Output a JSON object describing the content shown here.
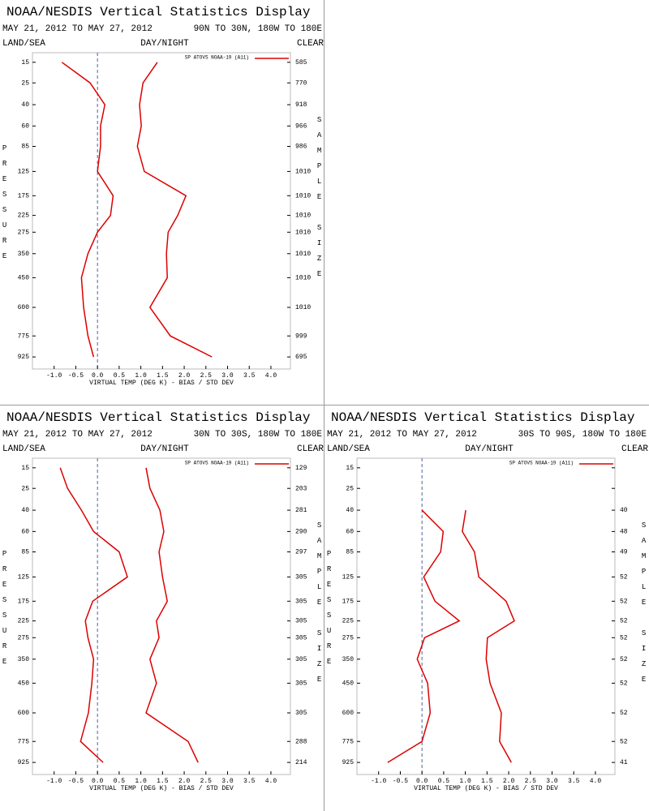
{
  "chart_data": [
    {
      "type": "line",
      "title": "NOAA/NESDIS Vertical Statistics Display",
      "subtitle": "MAY 21, 2012 TO MAY 27, 2012",
      "region": "90N TO 30N, 180W TO 180E",
      "left_header": "LAND/SEA",
      "center_header": "DAY/NIGHT",
      "right_header": "CLEAR",
      "ylabel": "PRESSURE",
      "y2label": "SAMPLE SIZE",
      "xlabel": "VIRTUAL TEMP (DEG K) - BIAS / STD DEV",
      "legend": {
        "label": "SP ATOVS NOAA-19 (A11)",
        "corner": "top-right"
      },
      "color": "#dd0000",
      "y": [
        15,
        25,
        40,
        60,
        85,
        125,
        175,
        225,
        275,
        350,
        450,
        600,
        775,
        925
      ],
      "yticks": [
        15,
        25,
        40,
        60,
        85,
        125,
        175,
        225,
        275,
        350,
        450,
        600,
        775,
        925
      ],
      "ylim": [
        11.5,
        1020
      ],
      "xlim": [
        -1.5,
        4.45
      ],
      "xticks": [
        {
          "value": -1.0,
          "label": "-1.0"
        },
        {
          "value": -0.5,
          "label": "-0.5"
        },
        {
          "value": 0.0,
          "label": "0.0"
        },
        {
          "value": 0.5,
          "label": "0.5"
        },
        {
          "value": 1.0,
          "label": "1.0"
        },
        {
          "value": 1.5,
          "label": "1.5"
        },
        {
          "value": 2.0,
          "label": "2.0"
        },
        {
          "value": 2.5,
          "label": "2.5"
        },
        {
          "value": 3.0,
          "label": "3.0"
        },
        {
          "value": 3.5,
          "label": "3.5"
        },
        {
          "value": 4.0,
          "label": "4.0"
        }
      ],
      "sample_size": [
        585,
        770,
        918,
        966,
        986,
        1010,
        1010,
        1010,
        1010,
        1010,
        1010,
        1010,
        999,
        695
      ],
      "series": [
        {
          "color": "#dd0000",
          "values": [
            -0.82,
            -0.17,
            0.17,
            0.07,
            0.07,
            0.0,
            0.36,
            0.3,
            0.0,
            -0.22,
            -0.37,
            -0.32,
            -0.22,
            -0.09
          ]
        },
        {
          "color": "#dd0000",
          "values": [
            1.38,
            1.05,
            0.97,
            1.01,
            0.92,
            1.08,
            2.04,
            1.85,
            1.63,
            1.59,
            1.61,
            1.21,
            1.68,
            2.64
          ]
        }
      ]
    },
    {
      "type": "line",
      "title": "NOAA/NESDIS Vertical Statistics Display",
      "subtitle": "MAY 21, 2012 TO MAY 27, 2012",
      "region": "30N TO 30S, 180W TO 180E",
      "left_header": "LAND/SEA",
      "center_header": "DAY/NIGHT",
      "right_header": "CLEAR",
      "ylabel": "PRESSURE",
      "y2label": "SAMPLE SIZE",
      "xlabel": "VIRTUAL TEMP (DEG K) - BIAS / STD DEV",
      "legend": {
        "label": "SP ATOVS NOAA-19 (A11)",
        "corner": "top-right"
      },
      "color": "#dd0000",
      "y": [
        15,
        25,
        40,
        60,
        85,
        125,
        175,
        225,
        275,
        350,
        450,
        600,
        775,
        925
      ],
      "yticks": [
        15,
        25,
        40,
        60,
        85,
        125,
        175,
        225,
        275,
        350,
        450,
        600,
        775,
        925
      ],
      "ylim": [
        11.5,
        1020
      ],
      "xlim": [
        -1.5,
        4.45
      ],
      "xticks": [
        {
          "value": -1.0,
          "label": "-1.0"
        },
        {
          "value": -0.5,
          "label": "-0.5"
        },
        {
          "value": 0.0,
          "label": "0.0"
        },
        {
          "value": 0.5,
          "label": "0.5"
        },
        {
          "value": 1.0,
          "label": "1.0"
        },
        {
          "value": 1.5,
          "label": "1.5"
        },
        {
          "value": 2.0,
          "label": "2.0"
        },
        {
          "value": 2.5,
          "label": "2.5"
        },
        {
          "value": 3.0,
          "label": "3.0"
        },
        {
          "value": 3.5,
          "label": "3.5"
        },
        {
          "value": 4.0,
          "label": "4.0"
        }
      ],
      "sample_size": [
        129,
        203,
        281,
        290,
        297,
        305,
        305,
        305,
        305,
        305,
        305,
        305,
        288,
        214
      ],
      "series": [
        {
          "color": "#dd0000",
          "values": [
            -0.86,
            -0.69,
            -0.37,
            -0.09,
            0.5,
            0.69,
            -0.11,
            -0.28,
            -0.22,
            -0.09,
            -0.13,
            -0.21,
            -0.39,
            0.13
          ]
        },
        {
          "color": "#dd0000",
          "values": [
            1.12,
            1.21,
            1.44,
            1.53,
            1.42,
            1.5,
            1.61,
            1.36,
            1.42,
            1.21,
            1.36,
            1.12,
            2.09,
            2.32
          ]
        }
      ]
    },
    {
      "type": "line",
      "title": "NOAA/NESDIS Vertical Statistics Display",
      "subtitle": "MAY 21, 2012 TO MAY 27, 2012",
      "region": "30S TO 90S, 180W TO 180E",
      "left_header": "LAND/SEA",
      "center_header": "DAY/NIGHT",
      "right_header": "CLEAR",
      "ylabel": "PRESSURE",
      "y2label": "SAMPLE SIZE",
      "xlabel": "VIRTUAL TEMP (DEG K) - BIAS / STD DEV",
      "legend": {
        "label": "SP ATOVS NOAA-19 (A11)",
        "corner": "top-right"
      },
      "color": "#dd0000",
      "y": [
        15,
        25,
        40,
        60,
        85,
        125,
        175,
        225,
        275,
        350,
        450,
        600,
        775,
        925
      ],
      "yticks": [
        15,
        25,
        40,
        60,
        85,
        125,
        175,
        225,
        275,
        350,
        450,
        600,
        775,
        925
      ],
      "ylim": [
        11.5,
        1020
      ],
      "xlim": [
        -1.5,
        4.45
      ],
      "xticks": [
        {
          "value": -1.0,
          "label": "-1.0"
        },
        {
          "value": -0.5,
          "label": "-0.5"
        },
        {
          "value": 0.0,
          "label": "0.0"
        },
        {
          "value": 0.5,
          "label": "0.5"
        },
        {
          "value": 1.0,
          "label": "1.0"
        },
        {
          "value": 1.5,
          "label": "1.5"
        },
        {
          "value": 2.0,
          "label": "2.0"
        },
        {
          "value": 2.5,
          "label": "2.5"
        },
        {
          "value": 3.0,
          "label": "3.0"
        },
        {
          "value": 3.5,
          "label": "3.5"
        },
        {
          "value": 4.0,
          "label": "4.0"
        }
      ],
      "sample_size": [
        null,
        null,
        40,
        48,
        49,
        52,
        52,
        52,
        52,
        52,
        52,
        52,
        52,
        41
      ],
      "series": [
        {
          "color": "#dd0000",
          "values": [
            null,
            null,
            0.0,
            0.49,
            0.43,
            0.04,
            0.3,
            0.86,
            0.06,
            -0.11,
            0.13,
            0.19,
            0.0,
            -0.79
          ]
        },
        {
          "color": "#dd0000",
          "values": [
            null,
            null,
            1.01,
            0.93,
            1.21,
            1.31,
            1.94,
            2.13,
            1.51,
            1.48,
            1.57,
            1.83,
            1.79,
            2.06
          ]
        }
      ]
    }
  ]
}
